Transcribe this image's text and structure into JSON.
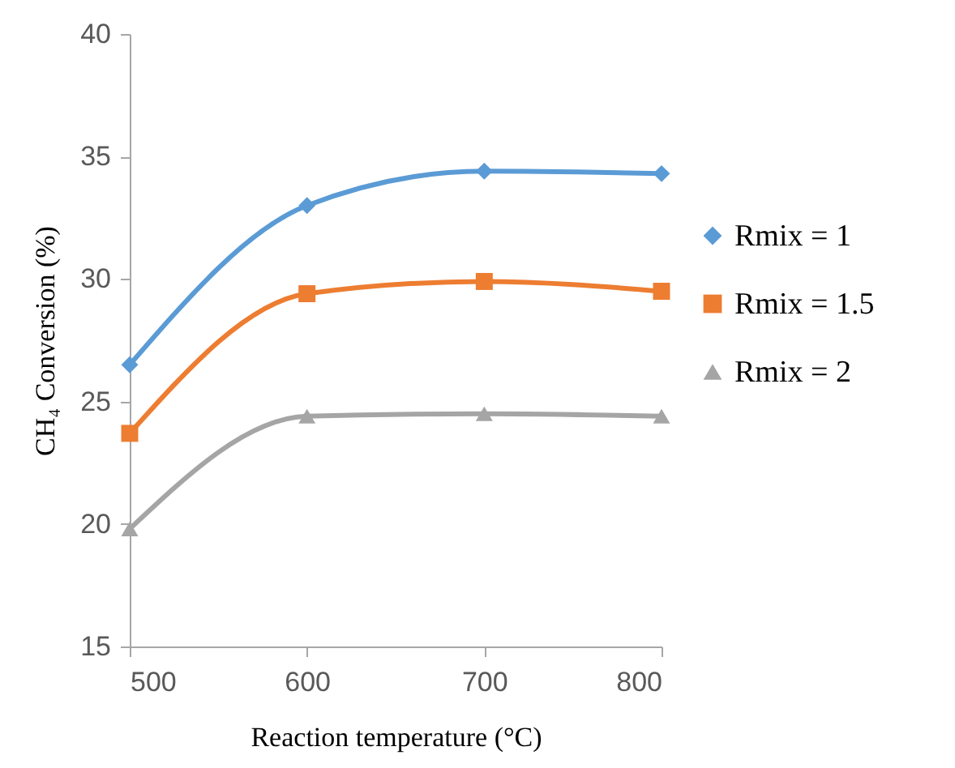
{
  "chart_data": {
    "type": "line",
    "xlabel": "Reaction temperature (°C)",
    "ylabel": "CH₄ Conversion (%)",
    "x": [
      500,
      600,
      700,
      800
    ],
    "xlim": [
      500,
      800
    ],
    "xticks": [
      500,
      600,
      700,
      800
    ],
    "ylim": [
      15,
      40
    ],
    "yticks": [
      15,
      20,
      25,
      30,
      35,
      40
    ],
    "grid": false,
    "legend": "right",
    "series": [
      {
        "name": "Rmix = 1",
        "color": "#5b9bd5",
        "marker": "diamond",
        "values": [
          26.5,
          33.0,
          34.4,
          34.3
        ]
      },
      {
        "name": "Rmix = 1.5",
        "color": "#ed7d31",
        "marker": "square",
        "values": [
          23.7,
          29.4,
          29.9,
          29.5
        ]
      },
      {
        "name": "Rmix = 2",
        "color": "#a5a5a5",
        "marker": "triangle",
        "values": [
          19.8,
          24.4,
          24.5,
          24.4
        ]
      }
    ]
  }
}
